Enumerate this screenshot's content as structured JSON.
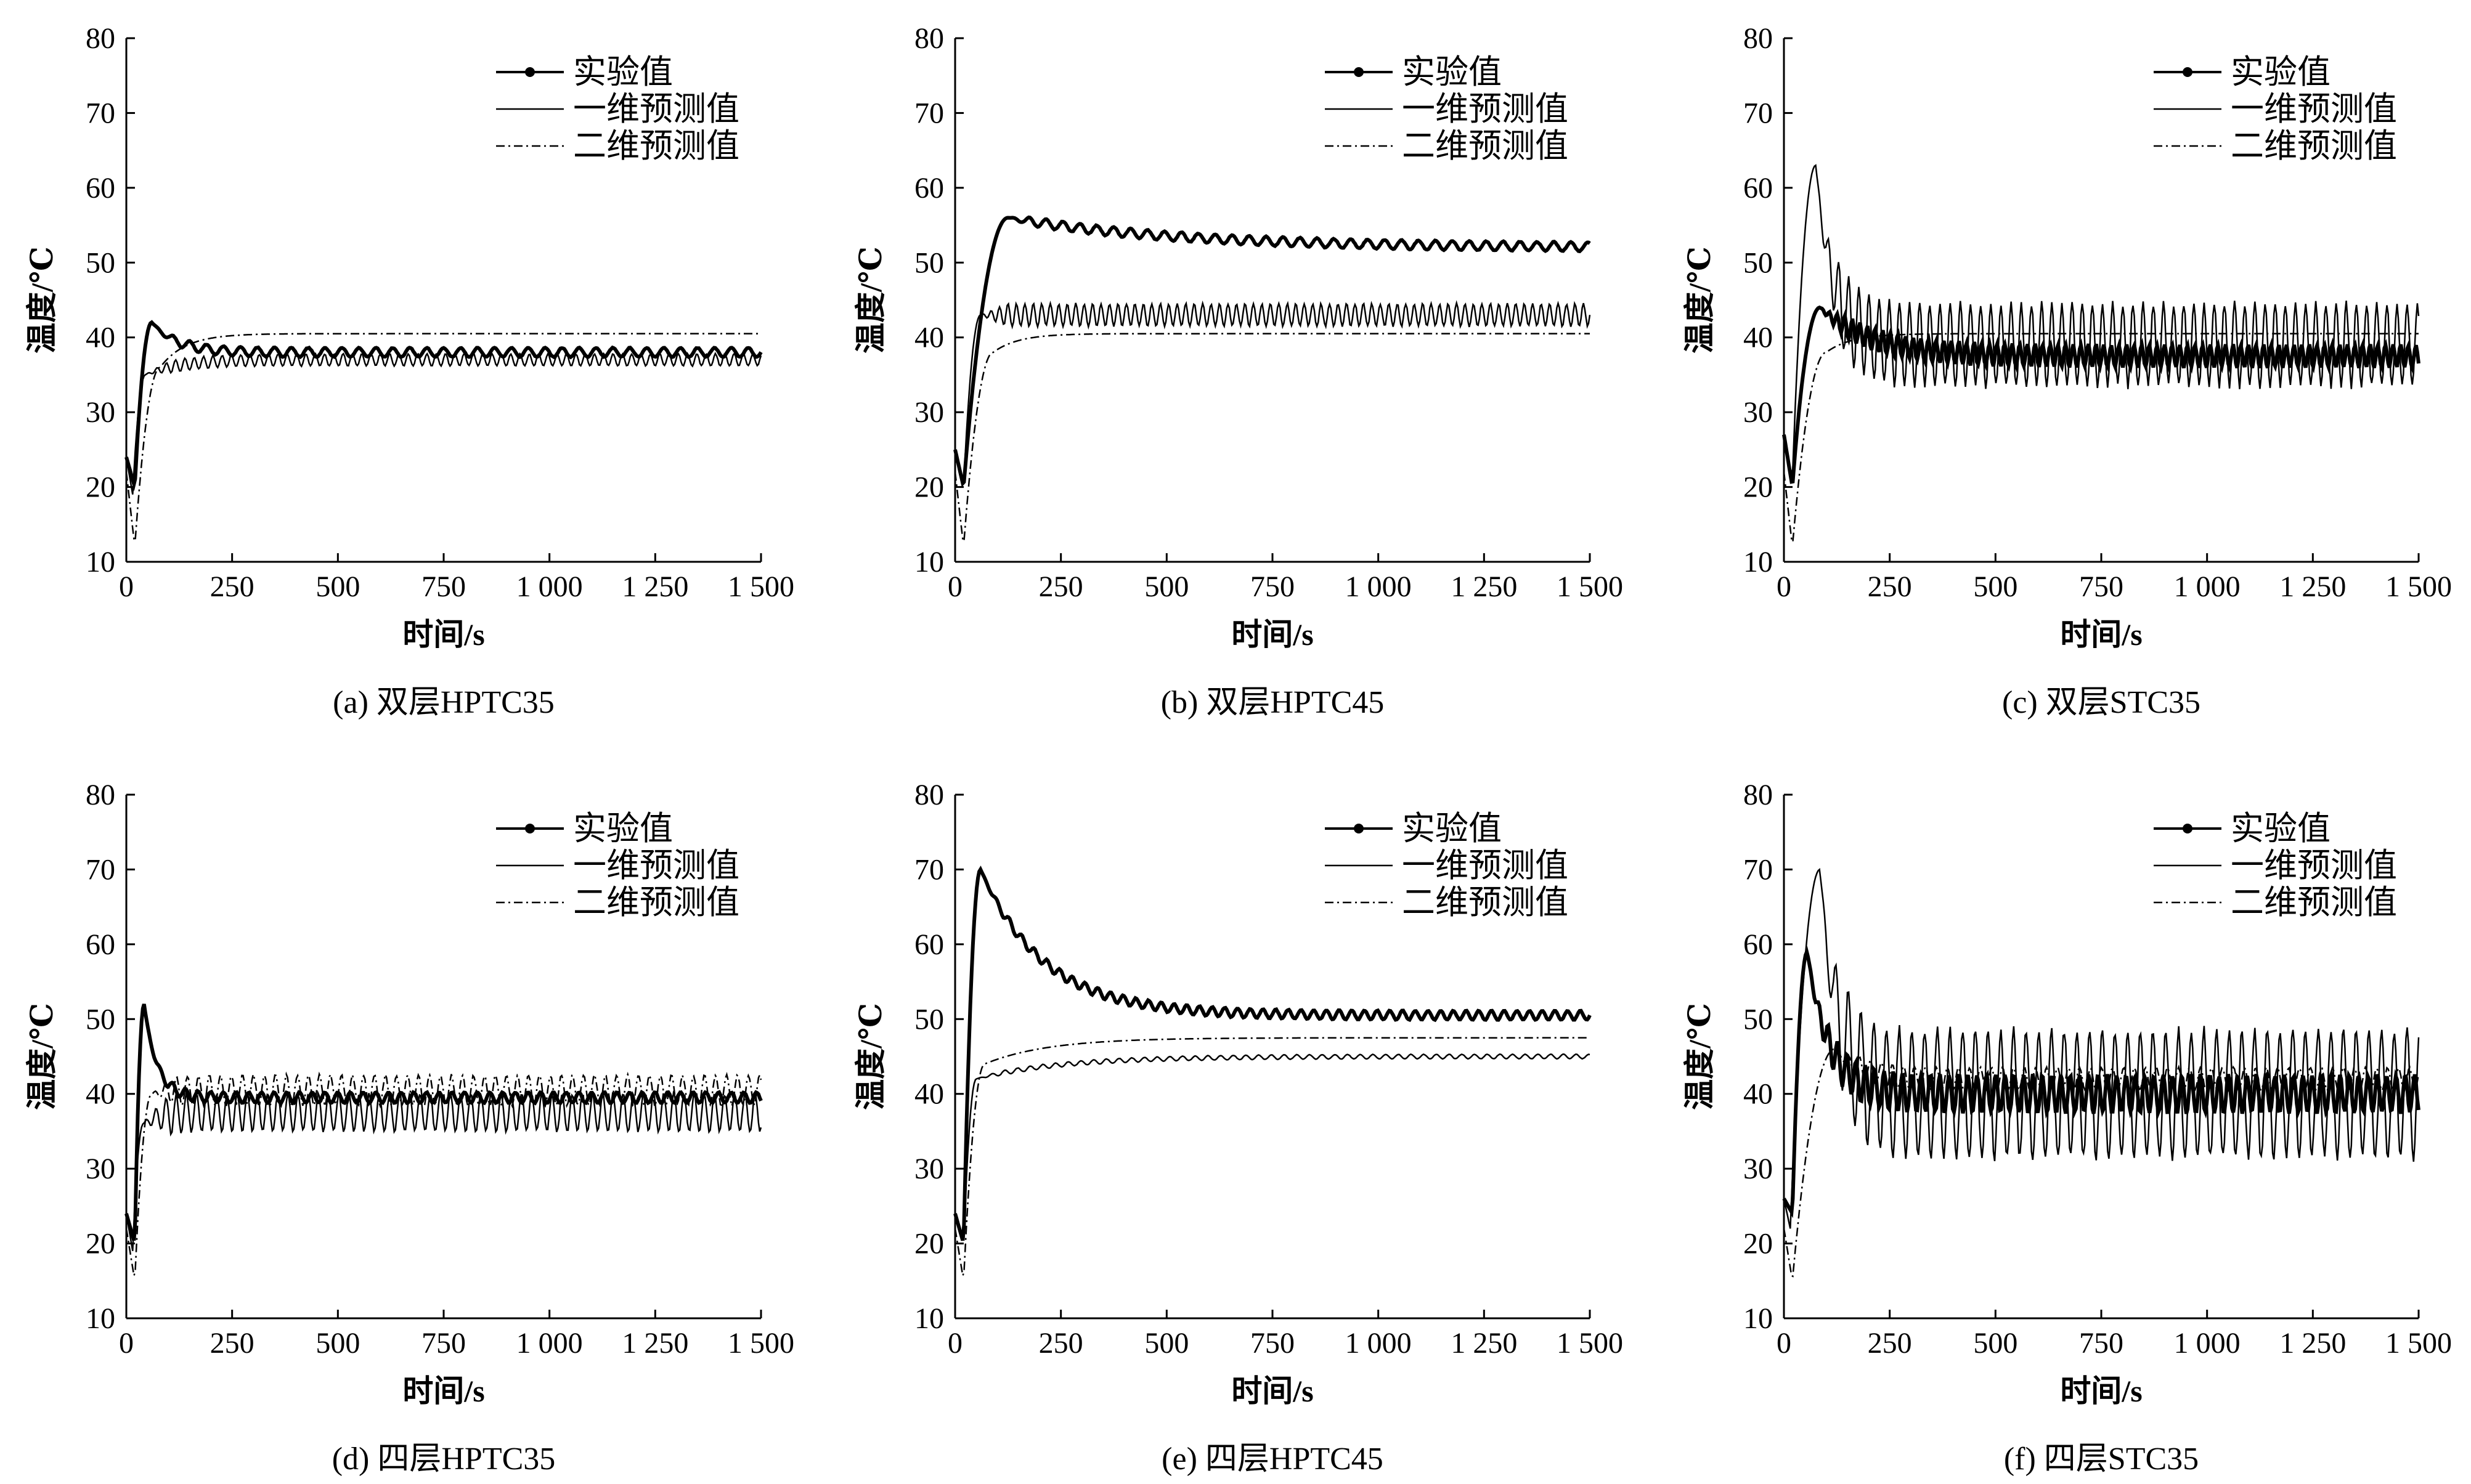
{
  "figure": {
    "panels_layout": "2 rows x 3 columns"
  },
  "chart_data": [
    {
      "id": "a",
      "type": "line",
      "caption": "(a) 双层HPTC35",
      "xlabel": "时间/s",
      "ylabel": "温度/℃",
      "xlim": [
        0,
        1500
      ],
      "ylim": [
        10,
        80
      ],
      "xticks": [
        0,
        250,
        500,
        750,
        1000,
        1250,
        1500
      ],
      "xtick_labels": [
        "0",
        "250",
        "500",
        "750",
        "1 000",
        "1 250",
        "1 500"
      ],
      "yticks": [
        10,
        20,
        30,
        40,
        50,
        60,
        70,
        80
      ],
      "ytick_labels": [
        "10",
        "20",
        "30",
        "40",
        "50",
        "60",
        "70",
        "80"
      ],
      "grid": false,
      "legend": "top-right",
      "series": [
        {
          "name": "实验值",
          "style": "line-marker",
          "start": 24,
          "dip": 20,
          "dip_t": 20,
          "peak": 42,
          "peak_t": 60,
          "settle": 38,
          "settle_t": 150,
          "tau": 60,
          "amp": 0.6,
          "period": 40
        },
        {
          "name": "一维预测值",
          "style": "solid",
          "start": 24,
          "dip": 19,
          "dip_t": 15,
          "peak": 35,
          "peak_t": 45,
          "settle": 37,
          "settle_t": 120,
          "tau": 80,
          "amp": 0.8,
          "period": 22
        },
        {
          "name": "二维预测值",
          "style": "dashdot",
          "start": 22,
          "dip": 12,
          "dip_t": 20,
          "peak": 36,
          "peak_t": 80,
          "settle": 40.5,
          "settle_t": 250,
          "tau": 60,
          "amp": 0,
          "period": 30
        }
      ]
    },
    {
      "id": "b",
      "type": "line",
      "caption": "(b) 双层HPTC45",
      "xlabel": "时间/s",
      "ylabel": "温度/℃",
      "xlim": [
        0,
        1500
      ],
      "ylim": [
        10,
        80
      ],
      "xticks": [
        0,
        250,
        500,
        750,
        1000,
        1250,
        1500
      ],
      "xtick_labels": [
        "0",
        "250",
        "500",
        "750",
        "1 000",
        "1 250",
        "1 500"
      ],
      "yticks": [
        10,
        20,
        30,
        40,
        50,
        60,
        70,
        80
      ],
      "ytick_labels": [
        "10",
        "20",
        "30",
        "40",
        "50",
        "60",
        "70",
        "80"
      ],
      "grid": false,
      "legend": "top-right",
      "series": [
        {
          "name": "实验值",
          "style": "line-marker",
          "start": 25,
          "dip": 20,
          "dip_t": 20,
          "peak": 56,
          "peak_t": 125,
          "settle": 52,
          "settle_t": 900,
          "tau": 400,
          "amp": 0.6,
          "period": 40
        },
        {
          "name": "一维预测值",
          "style": "solid",
          "start": 25,
          "dip": 20,
          "dip_t": 20,
          "peak": 43,
          "peak_t": 60,
          "settle": 43,
          "settle_t": 100,
          "tau": 50,
          "amp": 1.5,
          "period": 20
        },
        {
          "name": "二维预测值",
          "style": "dashdot",
          "start": 22,
          "dip": 12,
          "dip_t": 20,
          "peak": 38,
          "peak_t": 90,
          "settle": 40.5,
          "settle_t": 250,
          "tau": 60,
          "amp": 0,
          "period": 30
        }
      ]
    },
    {
      "id": "c",
      "type": "line",
      "caption": "(c) 双层STC35",
      "xlabel": "时间/s",
      "ylabel": "温度/℃",
      "xlim": [
        0,
        1500
      ],
      "ylim": [
        10,
        80
      ],
      "xticks": [
        0,
        250,
        500,
        750,
        1000,
        1250,
        1500
      ],
      "xtick_labels": [
        "0",
        "250",
        "500",
        "750",
        "1 000",
        "1 250",
        "1 500"
      ],
      "yticks": [
        10,
        20,
        30,
        40,
        50,
        60,
        70,
        80
      ],
      "ytick_labels": [
        "10",
        "20",
        "30",
        "40",
        "50",
        "60",
        "70",
        "80"
      ],
      "grid": false,
      "legend": "top-right",
      "series": [
        {
          "name": "实验值",
          "style": "line-marker",
          "start": 27,
          "dip": 20,
          "dip_t": 20,
          "peak": 44,
          "peak_t": 85,
          "settle": 37.5,
          "settle_t": 300,
          "tau": 120,
          "amp": 1.5,
          "period": 18
        },
        {
          "name": "一维预测值",
          "style": "solid",
          "start": 27,
          "dip": 21,
          "dip_t": 20,
          "peak": 63,
          "peak_t": 75,
          "settle": 39,
          "settle_t": 130,
          "tau": 40,
          "amp": 5.5,
          "period": 24
        },
        {
          "name": "二维预测值",
          "style": "dashdot",
          "start": 22,
          "dip": 12,
          "dip_t": 20,
          "peak": 38,
          "peak_t": 100,
          "settle": 40.5,
          "settle_t": 200,
          "tau": 60,
          "amp": 0,
          "period": 30
        }
      ]
    },
    {
      "id": "d",
      "type": "line",
      "caption": "(d) 四层HPTC35",
      "xlabel": "时间/s",
      "ylabel": "温度/℃",
      "xlim": [
        0,
        1500
      ],
      "ylim": [
        10,
        80
      ],
      "xticks": [
        0,
        250,
        500,
        750,
        1000,
        1250,
        1500
      ],
      "xtick_labels": [
        "0",
        "250",
        "500",
        "750",
        "1 000",
        "1 250",
        "1 500"
      ],
      "yticks": [
        10,
        20,
        30,
        40,
        50,
        60,
        70,
        80
      ],
      "ytick_labels": [
        "10",
        "20",
        "30",
        "40",
        "50",
        "60",
        "70",
        "80"
      ],
      "grid": false,
      "legend": "top-right",
      "series": [
        {
          "name": "实验值",
          "style": "line-marker",
          "start": 24,
          "dip": 20,
          "dip_t": 20,
          "peak": 52,
          "peak_t": 42,
          "settle": 39.5,
          "settle_t": 100,
          "tau": 30,
          "amp": 0.7,
          "period": 30
        },
        {
          "name": "一维预测值",
          "style": "solid",
          "start": 24,
          "dip": 19,
          "dip_t": 15,
          "peak": 36,
          "peak_t": 40,
          "settle": 37.5,
          "settle_t": 90,
          "tau": 40,
          "amp": 2.5,
          "period": 24
        },
        {
          "name": "二维预测值",
          "style": "dashdot",
          "start": 22,
          "dip": 15,
          "dip_t": 20,
          "peak": 40,
          "peak_t": 60,
          "settle": 40.5,
          "settle_t": 120,
          "tau": 40,
          "amp": 2,
          "period": 26
        }
      ]
    },
    {
      "id": "e",
      "type": "line",
      "caption": "(e) 四层HPTC45",
      "xlabel": "时间/s",
      "ylabel": "温度/℃",
      "xlim": [
        0,
        1500
      ],
      "ylim": [
        10,
        80
      ],
      "xticks": [
        0,
        250,
        500,
        750,
        1000,
        1250,
        1500
      ],
      "xtick_labels": [
        "0",
        "250",
        "500",
        "750",
        "1 000",
        "1 250",
        "1 500"
      ],
      "yticks": [
        10,
        20,
        30,
        40,
        50,
        60,
        70,
        80
      ],
      "ytick_labels": [
        "10",
        "20",
        "30",
        "40",
        "50",
        "60",
        "70",
        "80"
      ],
      "grid": false,
      "legend": "top-right",
      "series": [
        {
          "name": "实验值",
          "style": "line-marker",
          "start": 24,
          "dip": 20,
          "dip_t": 20,
          "peak": 70,
          "peak_t": 60,
          "settle": 50.5,
          "settle_t": 400,
          "tau": 150,
          "amp": 0.6,
          "period": 30
        },
        {
          "name": "一维预测值",
          "style": "solid",
          "start": 24,
          "dip": 20,
          "dip_t": 20,
          "peak": 42,
          "peak_t": 50,
          "settle": 45,
          "settle_t": 600,
          "tau": 200,
          "amp": 0.3,
          "period": 30
        },
        {
          "name": "二维预测值",
          "style": "dashdot",
          "start": 22,
          "dip": 15,
          "dip_t": 20,
          "peak": 44,
          "peak_t": 70,
          "settle": 47.5,
          "settle_t": 500,
          "tau": 150,
          "amp": 0,
          "period": 30
        }
      ]
    },
    {
      "id": "f",
      "type": "line",
      "caption": "(f) 四层STC35",
      "xlabel": "时间/s",
      "ylabel": "温度/℃",
      "xlim": [
        0,
        1500
      ],
      "ylim": [
        10,
        80
      ],
      "xticks": [
        0,
        250,
        500,
        750,
        1000,
        1250,
        1500
      ],
      "xtick_labels": [
        "0",
        "250",
        "500",
        "750",
        "1 000",
        "1 250",
        "1 500"
      ],
      "yticks": [
        10,
        20,
        30,
        40,
        50,
        60,
        70,
        80
      ],
      "ytick_labels": [
        "10",
        "20",
        "30",
        "40",
        "50",
        "60",
        "70",
        "80"
      ],
      "grid": false,
      "legend": "top-right",
      "series": [
        {
          "name": "实验值",
          "style": "line-marker",
          "start": 26,
          "dip": 24,
          "dip_t": 20,
          "peak": 59,
          "peak_t": 55,
          "settle": 40,
          "settle_t": 150,
          "tau": 50,
          "amp": 2.5,
          "period": 22
        },
        {
          "name": "一维预测值",
          "style": "solid",
          "start": 26,
          "dip": 22,
          "dip_t": 15,
          "peak": 70,
          "peak_t": 85,
          "settle": 40,
          "settle_t": 150,
          "tau": 40,
          "amp": 8.5,
          "period": 30
        },
        {
          "name": "二维预测值",
          "style": "dashdot",
          "start": 22,
          "dip": 15,
          "dip_t": 20,
          "peak": 46,
          "peak_t": 120,
          "settle": 42,
          "settle_t": 200,
          "tau": 60,
          "amp": 1.5,
          "period": 26
        }
      ]
    }
  ]
}
